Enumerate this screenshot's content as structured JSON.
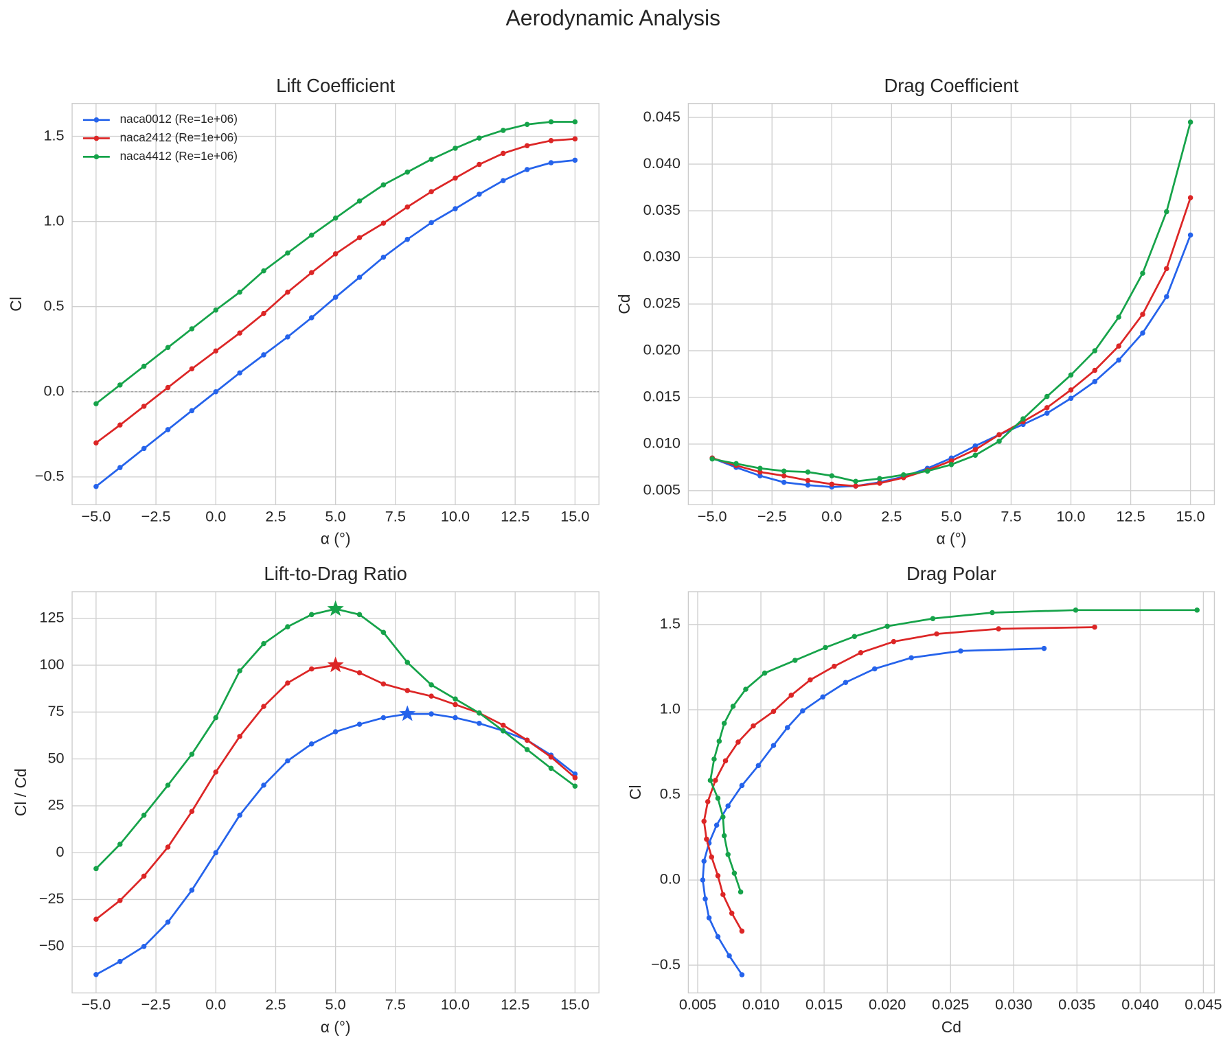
{
  "title": "Aerodynamic Analysis",
  "chart_data": [
    {
      "type": "line",
      "title": "Lift Coefficient",
      "xlabel": "α (°)",
      "ylabel": "Cl",
      "x": [
        -5,
        -4,
        -3,
        -2,
        -1,
        0,
        1,
        2,
        3,
        4,
        5,
        6,
        7,
        8,
        9,
        10,
        11,
        12,
        13,
        14,
        15
      ],
      "series": [
        {
          "name": "naca0012 (Re=1e+06)",
          "color": "#2563eb",
          "values": [
            -0.556,
            -0.445,
            -0.333,
            -0.222,
            -0.111,
            0,
            0.111,
            0.217,
            0.322,
            0.435,
            0.555,
            0.672,
            0.79,
            0.895,
            0.993,
            1.075,
            1.16,
            1.24,
            1.305,
            1.345,
            1.36
          ]
        },
        {
          "name": "naca2412 (Re=1e+06)",
          "color": "#dc2626",
          "values": [
            -0.3,
            -0.195,
            -0.085,
            0.025,
            0.135,
            0.24,
            0.345,
            0.46,
            0.585,
            0.7,
            0.81,
            0.905,
            0.99,
            1.085,
            1.175,
            1.255,
            1.335,
            1.4,
            1.445,
            1.475,
            1.485
          ]
        },
        {
          "name": "naca4412 (Re=1e+06)",
          "color": "#16a34a",
          "values": [
            -0.07,
            0.04,
            0.15,
            0.26,
            0.37,
            0.48,
            0.585,
            0.71,
            0.815,
            0.92,
            1.02,
            1.12,
            1.215,
            1.29,
            1.365,
            1.43,
            1.49,
            1.535,
            1.57,
            1.585,
            1.585
          ]
        }
      ],
      "xlim": [
        -6,
        16
      ],
      "ylim": [
        -0.663,
        1.693
      ],
      "xticks": [
        {
          "value": -5,
          "label": "−5.0"
        },
        {
          "value": -2.5,
          "label": "−2.5"
        },
        {
          "value": 0,
          "label": "0.0"
        },
        2.5,
        {
          "value": 5,
          "label": "5.0"
        },
        7.5,
        {
          "value": 10,
          "label": "10.0"
        },
        12.5,
        {
          "value": 15,
          "label": "15.0"
        }
      ],
      "yticks": [
        {
          "value": -0.5,
          "label": "−0.5"
        },
        {
          "value": 0,
          "label": "0.0"
        },
        0.5,
        {
          "value": 1,
          "label": "1.0"
        },
        1.5
      ],
      "grid": true,
      "zero_line": true,
      "legend": "upper left"
    },
    {
      "type": "line",
      "title": "Drag Coefficient",
      "xlabel": "α (°)",
      "ylabel": "Cd",
      "x": [
        -5,
        -4,
        -3,
        -2,
        -1,
        0,
        1,
        2,
        3,
        4,
        5,
        6,
        7,
        8,
        9,
        10,
        11,
        12,
        13,
        14,
        15
      ],
      "series": [
        {
          "color": "#2563eb",
          "values": [
            0.0085,
            0.0075,
            0.0066,
            0.0059,
            0.0056,
            0.0054,
            0.0055,
            0.0059,
            0.0065,
            0.0074,
            0.0085,
            0.0098,
            0.011,
            0.0121,
            0.0133,
            0.0149,
            0.0167,
            0.019,
            0.0219,
            0.0258,
            0.0324
          ]
        },
        {
          "color": "#dc2626",
          "values": [
            0.0085,
            0.0077,
            0.007,
            0.0066,
            0.0061,
            0.0057,
            0.0055,
            0.0058,
            0.0064,
            0.0072,
            0.0082,
            0.0094,
            0.011,
            0.0124,
            0.0139,
            0.0158,
            0.0179,
            0.0205,
            0.0239,
            0.0288,
            0.0364
          ]
        },
        {
          "color": "#16a34a",
          "values": [
            0.0084,
            0.0079,
            0.0074,
            0.0071,
            0.007,
            0.0066,
            0.006,
            0.0063,
            0.0067,
            0.0071,
            0.0078,
            0.0088,
            0.0103,
            0.0127,
            0.0151,
            0.0174,
            0.02,
            0.0236,
            0.0283,
            0.0349,
            0.0445
          ]
        }
      ],
      "xlim": [
        -6,
        16
      ],
      "ylim": [
        0.0035,
        0.0465
      ],
      "xticks": [
        {
          "value": -5,
          "label": "−5.0"
        },
        {
          "value": -2.5,
          "label": "−2.5"
        },
        {
          "value": 0,
          "label": "0.0"
        },
        2.5,
        {
          "value": 5,
          "label": "5.0"
        },
        7.5,
        {
          "value": 10,
          "label": "10.0"
        },
        12.5,
        {
          "value": 15,
          "label": "15.0"
        }
      ],
      "yticks": [
        0.005,
        {
          "value": 0.01,
          "label": "0.010"
        },
        0.015,
        {
          "value": 0.02,
          "label": "0.020"
        },
        0.025,
        {
          "value": 0.03,
          "label": "0.030"
        },
        0.035,
        {
          "value": 0.04,
          "label": "0.040"
        },
        0.045
      ],
      "grid": true
    },
    {
      "type": "line",
      "title": "Lift-to-Drag Ratio",
      "xlabel": "α (°)",
      "ylabel": "Cl / Cd",
      "x": [
        -5,
        -4,
        -3,
        -2,
        -1,
        0,
        1,
        2,
        3,
        4,
        5,
        6,
        7,
        8,
        9,
        10,
        11,
        12,
        13,
        14,
        15
      ],
      "series": [
        {
          "color": "#2563eb",
          "values": [
            -65,
            -58,
            -50,
            -37,
            -20,
            0,
            20,
            36,
            49,
            58,
            64.5,
            68.5,
            72,
            74,
            74,
            72,
            69,
            65,
            60,
            52,
            42
          ]
        },
        {
          "color": "#dc2626",
          "values": [
            -35.5,
            -25.5,
            -12.5,
            3,
            22,
            43,
            62,
            78,
            90.5,
            98,
            100,
            96,
            90,
            86.5,
            83.5,
            79,
            74.5,
            68,
            60,
            51,
            40
          ]
        },
        {
          "color": "#16a34a",
          "values": [
            -8.5,
            4.5,
            20,
            36,
            52.5,
            72,
            97,
            111.5,
            120.5,
            127,
            130,
            127,
            117.5,
            101.5,
            89.5,
            82,
            74.5,
            65,
            55,
            45,
            35.5
          ]
        }
      ],
      "xlim": [
        -6,
        16
      ],
      "ylim": [
        -74.8,
        139.2
      ],
      "xticks": [
        {
          "value": -5,
          "label": "−5.0"
        },
        {
          "value": -2.5,
          "label": "−2.5"
        },
        {
          "value": 0,
          "label": "0.0"
        },
        2.5,
        {
          "value": 5,
          "label": "5.0"
        },
        7.5,
        {
          "value": 10,
          "label": "10.0"
        },
        12.5,
        {
          "value": 15,
          "label": "15.0"
        }
      ],
      "yticks": [
        {
          "value": -50,
          "label": "−50"
        },
        {
          "value": -25,
          "label": "−25"
        },
        0,
        25,
        50,
        75,
        100,
        125
      ],
      "grid": true,
      "mark_max": true
    },
    {
      "type": "polar",
      "title": "Drag Polar",
      "xlabel": "Cd",
      "ylabel": "Cl",
      "series": [
        {
          "color": "#2563eb",
          "x": [
            0.0085,
            0.0075,
            0.0066,
            0.0059,
            0.0056,
            0.0054,
            0.0055,
            0.0059,
            0.0065,
            0.0074,
            0.0085,
            0.0098,
            0.011,
            0.0121,
            0.0133,
            0.0149,
            0.0167,
            0.019,
            0.0219,
            0.0258,
            0.0324
          ],
          "values": [
            -0.556,
            -0.445,
            -0.333,
            -0.222,
            -0.111,
            0,
            0.111,
            0.217,
            0.322,
            0.435,
            0.555,
            0.672,
            0.79,
            0.895,
            0.993,
            1.075,
            1.16,
            1.24,
            1.305,
            1.345,
            1.36
          ]
        },
        {
          "color": "#dc2626",
          "x": [
            0.0085,
            0.0077,
            0.007,
            0.0066,
            0.0061,
            0.0057,
            0.0055,
            0.0058,
            0.0064,
            0.0072,
            0.0082,
            0.0094,
            0.011,
            0.0124,
            0.0139,
            0.0158,
            0.0179,
            0.0205,
            0.0239,
            0.0288,
            0.0364
          ],
          "values": [
            -0.3,
            -0.195,
            -0.085,
            0.025,
            0.135,
            0.24,
            0.345,
            0.46,
            0.585,
            0.7,
            0.81,
            0.905,
            0.99,
            1.085,
            1.175,
            1.255,
            1.335,
            1.4,
            1.445,
            1.475,
            1.485
          ]
        },
        {
          "color": "#16a34a",
          "x": [
            0.0084,
            0.0079,
            0.0074,
            0.0071,
            0.007,
            0.0066,
            0.006,
            0.0063,
            0.0067,
            0.0071,
            0.0078,
            0.0088,
            0.0103,
            0.0127,
            0.0151,
            0.0174,
            0.02,
            0.0236,
            0.0283,
            0.0349,
            0.0445
          ],
          "values": [
            -0.07,
            0.04,
            0.15,
            0.26,
            0.37,
            0.48,
            0.585,
            0.71,
            0.815,
            0.92,
            1.02,
            1.12,
            1.215,
            1.29,
            1.365,
            1.43,
            1.49,
            1.535,
            1.57,
            1.585,
            1.585
          ]
        }
      ],
      "xlim": [
        0.00426,
        0.04587
      ],
      "ylim": [
        -0.663,
        1.693
      ],
      "xticks": [
        0.005,
        {
          "value": 0.01,
          "label": "0.010"
        },
        0.015,
        {
          "value": 0.02,
          "label": "0.020"
        },
        0.025,
        {
          "value": 0.03,
          "label": "0.030"
        },
        0.035,
        {
          "value": 0.04,
          "label": "0.040"
        },
        0.045
      ],
      "yticks": [
        {
          "value": -0.5,
          "label": "−0.5"
        },
        {
          "value": 0,
          "label": "0.0"
        },
        0.5,
        {
          "value": 1,
          "label": "1.0"
        },
        1.5
      ],
      "grid": true
    }
  ]
}
